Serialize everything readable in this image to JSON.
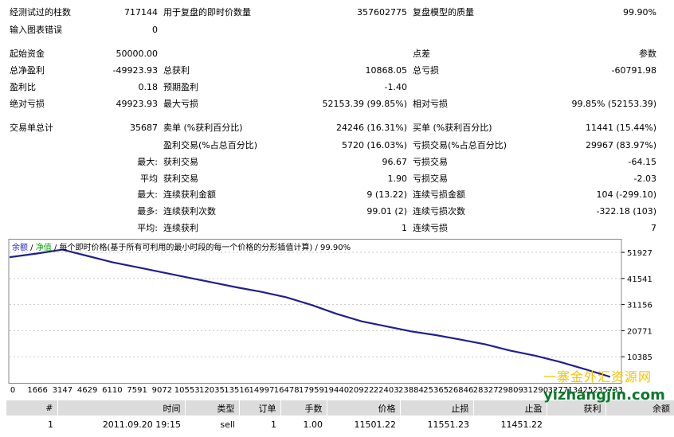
{
  "report": {
    "rows": [
      [
        {
          "label": "经测试过的柱数",
          "value": "717144"
        },
        {
          "label": "用于复盘的即时价数量",
          "value": "357602775"
        },
        {
          "label": "复盘模型的质量",
          "value": "99.90%"
        }
      ],
      [
        {
          "label": "输入图表错误",
          "value": "0"
        }
      ],
      [
        {
          "label": "起始资金",
          "value": "50000.00"
        },
        {
          "label": "",
          "value": ""
        },
        {
          "label": "点差",
          "value": "参数"
        }
      ],
      [
        {
          "label": "总净盈利",
          "value": "-49923.93"
        },
        {
          "label": "总获利",
          "value": "10868.05"
        },
        {
          "label": "总亏损",
          "value": "-60791.98"
        }
      ],
      [
        {
          "label": "盈利比",
          "value": "0.18"
        },
        {
          "label": "预期盈利",
          "value": "-1.40"
        }
      ],
      [
        {
          "label": "绝对亏损",
          "value": "49923.93"
        },
        {
          "label": "最大亏损",
          "value": "52153.39 (99.85%)"
        },
        {
          "label": "相对亏损",
          "value": "99.85% (52153.39)"
        }
      ],
      [
        {
          "label": "交易单总计",
          "value": "35687"
        },
        {
          "label": "卖单 (%获利百分比)",
          "value": "24246 (16.31%)"
        },
        {
          "label": "买单 (%获利百分比)",
          "value": "11441 (15.44%)"
        }
      ],
      [
        {
          "label": "",
          "value": ""
        },
        {
          "label": "盈利交易(%占总百分比)",
          "value": "5720 (16.03%)"
        },
        {
          "label": "亏损交易(%占总百分比)",
          "value": "29967 (83.97%)"
        }
      ],
      [
        {
          "label": "最大:",
          "value": ""
        },
        {
          "label": "获利交易",
          "value": "96.67"
        },
        {
          "label": "亏损交易",
          "value": "-64.15"
        }
      ],
      [
        {
          "label": "平均",
          "value": ""
        },
        {
          "label": "获利交易",
          "value": "1.90"
        },
        {
          "label": "亏损交易",
          "value": "-2.03"
        }
      ],
      [
        {
          "label": "最大:",
          "value": ""
        },
        {
          "label": "连续获利金额",
          "value": "9 (13.22)"
        },
        {
          "label": "连续亏损金额",
          "value": "104 (-299.10)"
        }
      ],
      [
        {
          "label": "最多:",
          "value": ""
        },
        {
          "label": "连续获利次数",
          "value": "99.01 (2)"
        },
        {
          "label": "连续亏损次数",
          "value": "-322.18 (103)"
        }
      ],
      [
        {
          "label": "平均:",
          "value": ""
        },
        {
          "label": "连续获利",
          "value": "1"
        },
        {
          "label": "连续亏损",
          "value": "7"
        }
      ]
    ]
  },
  "chart_legend": {
    "balance": "余额",
    "sep1": " / ",
    "equity": "净值",
    "sep2": " / ",
    "desc": "每个即时价格(基于所有可利用的最小时段的每一个价格的分形插值计算)",
    "sep3": " / ",
    "quality": "99.90%"
  },
  "chart_data": {
    "type": "line",
    "x": [
      0,
      1666,
      3147,
      4629,
      6110,
      7591,
      9072,
      10553,
      12035,
      13516,
      14997,
      16478,
      17959,
      19440,
      20922,
      22403,
      23884,
      25365,
      26846,
      28327,
      29809,
      31290,
      32771,
      34252,
      35733
    ],
    "x_tick_labels": [
      "0",
      "1666",
      "3147",
      "4629",
      "6110",
      "7591",
      "9072",
      "10553",
      "12035",
      "13516",
      "14997",
      "16478",
      "17959",
      "19440",
      "20922",
      "22403",
      "23884",
      "25365",
      "26846",
      "28327",
      "29809",
      "31290",
      "32771",
      "34252",
      "35733"
    ],
    "y_ticks": [
      51927,
      41541,
      31156,
      20771,
      10385
    ],
    "y_tick_labels": [
      "51927",
      "41541",
      "31156",
      "20771",
      "10385"
    ],
    "ylim": [
      0,
      57000
    ],
    "xlim": [
      0,
      36400
    ],
    "series": [
      {
        "name": "余额",
        "color": "#1f1f8f",
        "values": [
          50000,
          51500,
          53000,
          50500,
          48000,
          46000,
          44000,
          42000,
          40000,
          38000,
          36200,
          34000,
          31000,
          27500,
          24500,
          22500,
          20500,
          19000,
          17200,
          15300,
          12800,
          10800,
          8300,
          5400,
          2400
        ]
      }
    ],
    "grid": true,
    "colors": {
      "line": "#1f1f8f",
      "grid": "#c8c8c8",
      "border": "#888888",
      "legend_balance": "#1f1fd0",
      "legend_equity": "#00a000"
    }
  },
  "table": {
    "headers": [
      "#",
      "时间",
      "类型",
      "订单",
      "手数",
      "价格",
      "止损",
      "止盈",
      "获利",
      "余额"
    ],
    "rows": [
      [
        "1",
        "2011.09.20 19:15",
        "sell",
        "1",
        "1.00",
        "11501.22",
        "11551.23",
        "11451.22",
        "",
        ""
      ]
    ]
  },
  "watermark": {
    "line1": "一寨金外汇资源网",
    "line2": "yizhangjin.com"
  }
}
